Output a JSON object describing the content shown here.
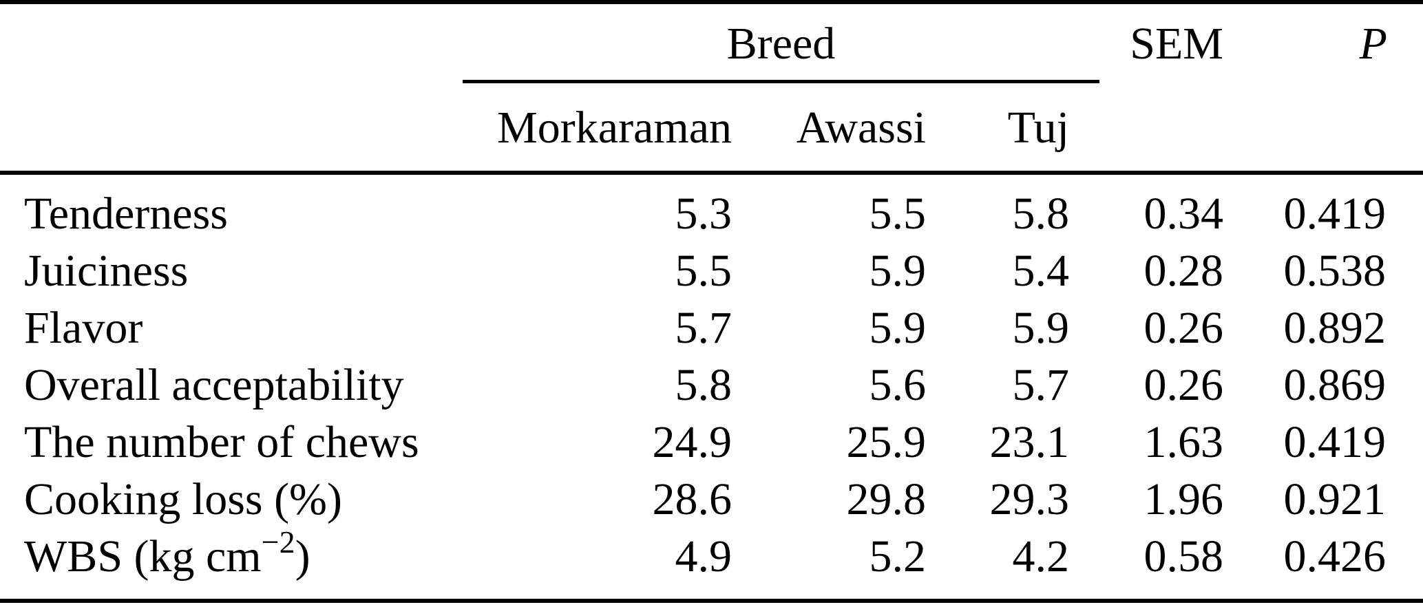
{
  "table": {
    "group_header": "Breed",
    "col_sem": "SEM",
    "col_p": "P",
    "breed_cols": {
      "morkaraman": "Morkaraman",
      "awassi": "Awassi",
      "tuj": "Tuj"
    },
    "rows": [
      {
        "label": "Tenderness",
        "values": [
          "5.3",
          "5.5",
          "5.8",
          "0.34",
          "0.419"
        ]
      },
      {
        "label": "Juiciness",
        "values": [
          "5.5",
          "5.9",
          "5.4",
          "0.28",
          "0.538"
        ]
      },
      {
        "label": "Flavor",
        "values": [
          "5.7",
          "5.9",
          "5.9",
          "0.26",
          "0.892"
        ]
      },
      {
        "label": "Overall acceptability",
        "values": [
          "5.8",
          "5.6",
          "5.7",
          "0.26",
          "0.869"
        ]
      },
      {
        "label": "The number of chews",
        "values": [
          "24.9",
          "25.9",
          "23.1",
          "1.63",
          "0.419"
        ]
      },
      {
        "label": "Cooking loss (%)",
        "values": [
          "28.6",
          "29.8",
          "29.3",
          "1.96",
          "0.921"
        ]
      },
      {
        "label_prefix": "WBS (kg cm",
        "label_sup": "−2",
        "label_suffix": ")",
        "values": [
          "4.9",
          "5.2",
          "4.2",
          "0.58",
          "0.426"
        ]
      }
    ]
  }
}
